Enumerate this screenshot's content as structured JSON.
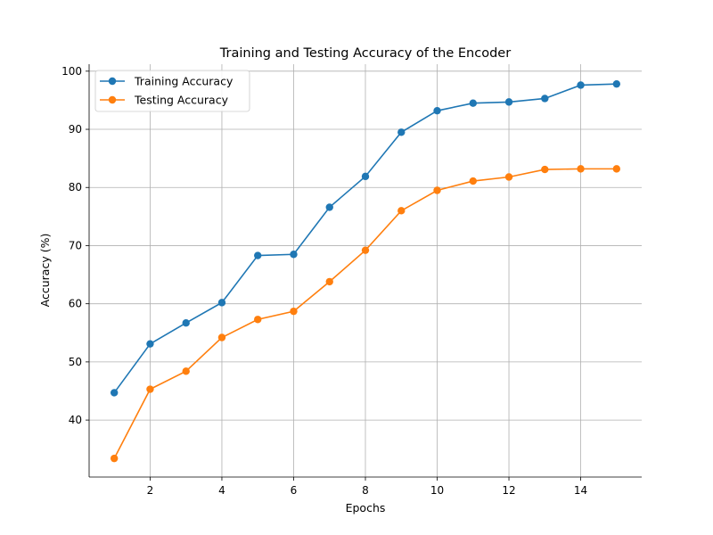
{
  "chart_data": {
    "type": "line",
    "title": "Training and Testing Accuracy of the Encoder",
    "xlabel": "Epochs",
    "ylabel": "Accuracy (%)",
    "x": [
      1,
      2,
      3,
      4,
      5,
      6,
      7,
      8,
      9,
      10,
      11,
      12,
      13,
      14,
      15
    ],
    "xlim": [
      0.3,
      15.7
    ],
    "ylim": [
      30.2,
      101.2
    ],
    "xticks": [
      2,
      4,
      6,
      8,
      10,
      12,
      14
    ],
    "yticks": [
      40,
      50,
      60,
      70,
      80,
      90,
      100
    ],
    "grid": true,
    "legend_location": "top-left",
    "series": [
      {
        "name": "Training Accuracy",
        "color": "#1f77b4",
        "marker": "circle",
        "values": [
          44.7,
          53.1,
          56.7,
          60.2,
          68.3,
          68.5,
          76.6,
          81.9,
          89.5,
          93.2,
          94.5,
          94.7,
          95.3,
          97.6,
          97.8
        ]
      },
      {
        "name": "Testing Accuracy",
        "color": "#ff7f0e",
        "marker": "circle",
        "values": [
          33.4,
          45.3,
          48.4,
          54.2,
          57.3,
          58.7,
          63.8,
          69.2,
          76.0,
          79.5,
          81.1,
          81.8,
          83.1,
          83.2,
          83.2
        ]
      }
    ]
  }
}
